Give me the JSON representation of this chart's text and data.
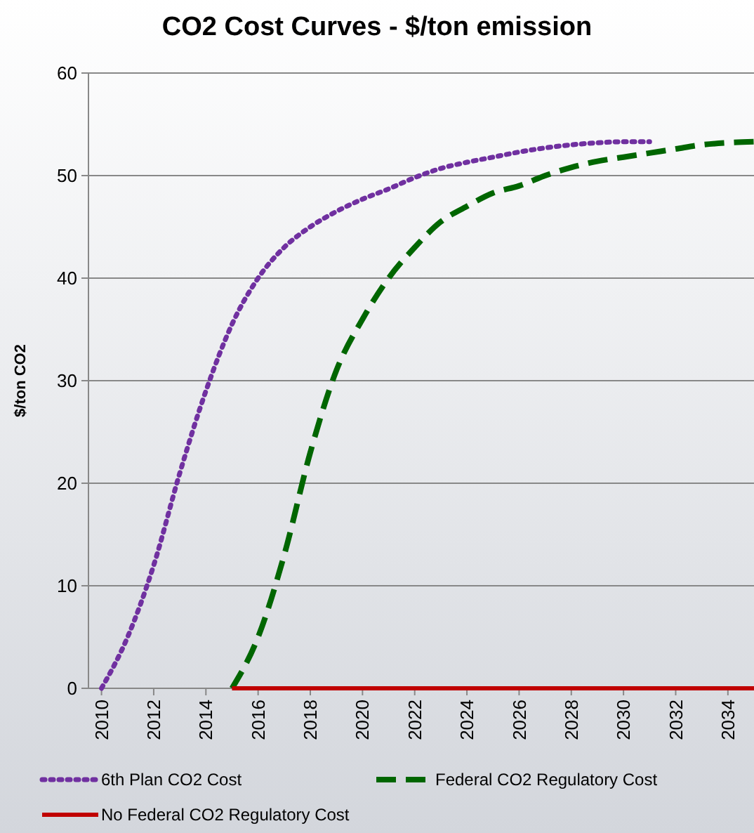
{
  "chart_data": {
    "type": "line",
    "title": "CO2 Cost Curves - $/ton emission",
    "ylabel": "$/ton CO2",
    "xlim": [
      2009.5,
      2035
    ],
    "xticks": [
      2010,
      2012,
      2014,
      2016,
      2018,
      2020,
      2022,
      2024,
      2026,
      2028,
      2030,
      2032,
      2034
    ],
    "ylim": [
      0,
      60
    ],
    "yticks": [
      0,
      10,
      20,
      30,
      40,
      50,
      60
    ],
    "grid": "y",
    "legend": "bottom",
    "series": [
      {
        "name": "6th Plan CO2 Cost",
        "color": "#7030a0",
        "line_style": "dotted",
        "x": [
          2010,
          2011,
          2012,
          2013,
          2014,
          2015,
          2016,
          2017,
          2018,
          2019,
          2020,
          2021,
          2022,
          2023,
          2024,
          2025,
          2026,
          2027,
          2028,
          2029,
          2030,
          2031
        ],
        "values": [
          0,
          5,
          12,
          21,
          29,
          35.5,
          40,
          43,
          45,
          46.5,
          47.7,
          48.7,
          49.8,
          50.7,
          51.3,
          51.8,
          52.3,
          52.7,
          53,
          53.2,
          53.3,
          53.3
        ]
      },
      {
        "name": "Federal CO2 Regulatory Cost",
        "color": "#006600",
        "line_style": "dashed",
        "x": [
          2015,
          2016,
          2017,
          2018,
          2019,
          2020,
          2021,
          2022,
          2023,
          2024,
          2025,
          2026,
          2027,
          2028,
          2029,
          2030,
          2031,
          2032,
          2033,
          2034,
          2035
        ],
        "values": [
          0,
          5,
          13,
          23,
          31,
          36,
          40,
          43,
          45.5,
          47,
          48.3,
          49,
          50,
          50.8,
          51.4,
          51.8,
          52.2,
          52.6,
          53,
          53.2,
          53.3
        ]
      },
      {
        "name": "No Federal CO2 Regulatory Cost",
        "color": "#c00000",
        "line_style": "solid",
        "x": [
          2015,
          2035
        ],
        "values": [
          0,
          0
        ]
      }
    ]
  }
}
